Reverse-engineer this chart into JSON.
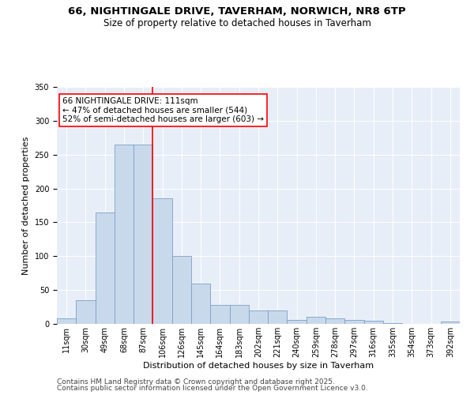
{
  "title_line1": "66, NIGHTINGALE DRIVE, TAVERHAM, NORWICH, NR8 6TP",
  "title_line2": "Size of property relative to detached houses in Taverham",
  "xlabel": "Distribution of detached houses by size in Taverham",
  "ylabel": "Number of detached properties",
  "bar_color": "#c9d9ec",
  "bar_edge_color": "#7aa0c4",
  "tick_labels": [
    "11sqm",
    "30sqm",
    "49sqm",
    "68sqm",
    "87sqm",
    "106sqm",
    "126sqm",
    "145sqm",
    "164sqm",
    "183sqm",
    "202sqm",
    "221sqm",
    "240sqm",
    "259sqm",
    "278sqm",
    "297sqm",
    "316sqm",
    "335sqm",
    "354sqm",
    "373sqm",
    "392sqm"
  ],
  "bar_heights": [
    8,
    35,
    165,
    265,
    265,
    185,
    100,
    60,
    28,
    28,
    20,
    20,
    6,
    10,
    8,
    6,
    5,
    1,
    0,
    0,
    3
  ],
  "annotation_text": "66 NIGHTINGALE DRIVE: 111sqm\n← 47% of detached houses are smaller (544)\n52% of semi-detached houses are larger (603) →",
  "annotation_box_color": "white",
  "annotation_box_edge_color": "red",
  "vline_color": "red",
  "vline_x": 5.0,
  "ylim": [
    0,
    350
  ],
  "yticks": [
    0,
    50,
    100,
    150,
    200,
    250,
    300,
    350
  ],
  "background_color": "#e8eef8",
  "footer_line1": "Contains HM Land Registry data © Crown copyright and database right 2025.",
  "footer_line2": "Contains public sector information licensed under the Open Government Licence v3.0.",
  "title_fontsize": 9.5,
  "subtitle_fontsize": 8.5,
  "axis_label_fontsize": 8,
  "tick_fontsize": 7,
  "annotation_fontsize": 7.5,
  "footer_fontsize": 6.5
}
